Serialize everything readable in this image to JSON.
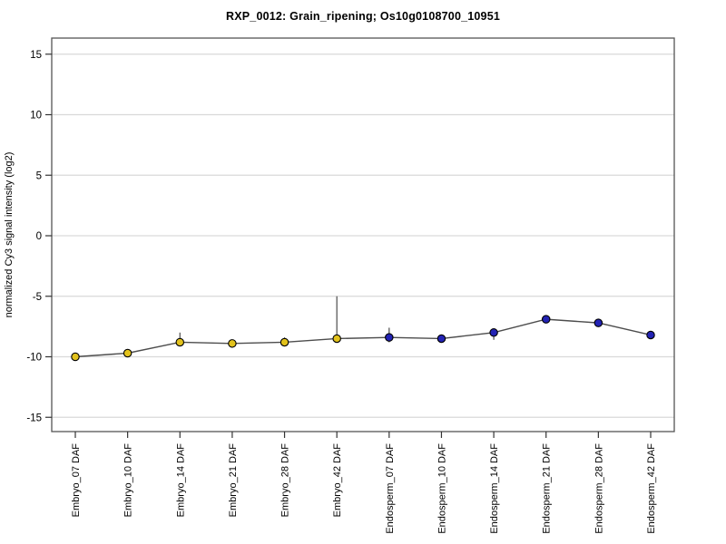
{
  "chart_data": {
    "type": "line",
    "title": "RXP_0012: Grain_ripening; Os10g0108700_10951",
    "xlabel": "",
    "ylabel": "normalized Cy3 signal intensity (log2)",
    "ylim": [
      -16.3,
      16.3
    ],
    "yticks": [
      15,
      10,
      5,
      0,
      -5,
      -10,
      -15
    ],
    "grid": true,
    "legend_position": "none",
    "categories": [
      "Embryo_07 DAF",
      "Embryo_10 DAF",
      "Embryo_14 DAF",
      "Embryo_21 DAF",
      "Embryo_28 DAF",
      "Embryo_42 DAF",
      "Endosperm_07 DAF",
      "Endosperm_10 DAF",
      "Endosperm_14 DAF",
      "Endosperm_21 DAF",
      "Endosperm_28 DAF",
      "Endosperm_42 DAF"
    ],
    "points": [
      {
        "label": "Embryo_07 DAF",
        "value": -10.0,
        "err_low": -10.3,
        "err_high": -9.7,
        "group": "Embryo"
      },
      {
        "label": "Embryo_10 DAF",
        "value": -9.7,
        "err_low": -10.0,
        "err_high": -9.4,
        "group": "Embryo"
      },
      {
        "label": "Embryo_14 DAF",
        "value": -8.8,
        "err_low": -9.0,
        "err_high": -8.0,
        "group": "Embryo"
      },
      {
        "label": "Embryo_21 DAF",
        "value": -8.9,
        "err_low": -9.1,
        "err_high": -8.7,
        "group": "Embryo"
      },
      {
        "label": "Embryo_28 DAF",
        "value": -8.8,
        "err_low": -9.1,
        "err_high": -8.4,
        "group": "Embryo"
      },
      {
        "label": "Embryo_42 DAF",
        "value": -8.5,
        "err_low": -8.8,
        "err_high": -5.0,
        "group": "Embryo"
      },
      {
        "label": "Endosperm_07 DAF",
        "value": -8.4,
        "err_low": -8.8,
        "err_high": -7.6,
        "group": "Endosperm"
      },
      {
        "label": "Endosperm_10 DAF",
        "value": -8.5,
        "err_low": -8.6,
        "err_high": -8.4,
        "group": "Endosperm"
      },
      {
        "label": "Endosperm_14 DAF",
        "value": -8.0,
        "err_low": -8.6,
        "err_high": -7.9,
        "group": "Endosperm"
      },
      {
        "label": "Endosperm_21 DAF",
        "value": -6.9,
        "err_low": -7.0,
        "err_high": -6.8,
        "group": "Endosperm"
      },
      {
        "label": "Endosperm_28 DAF",
        "value": -7.2,
        "err_low": -7.3,
        "err_high": -7.1,
        "group": "Endosperm"
      },
      {
        "label": "Endosperm_42 DAF",
        "value": -8.2,
        "err_low": -8.3,
        "err_high": -8.1,
        "group": "Endosperm"
      }
    ],
    "groups": {
      "Embryo": {
        "marker_fill": "#E2C21C"
      },
      "Endosperm": {
        "marker_fill": "#2323B4"
      }
    },
    "colors": {
      "line": "#4d4d4d",
      "error_bar": "#4d4d4d",
      "marker_stroke": "#000000",
      "gridline": "#d9d9d9",
      "plot_border": "#555555",
      "tick": "#333333",
      "text": "#000000",
      "background": "#ffffff"
    }
  }
}
